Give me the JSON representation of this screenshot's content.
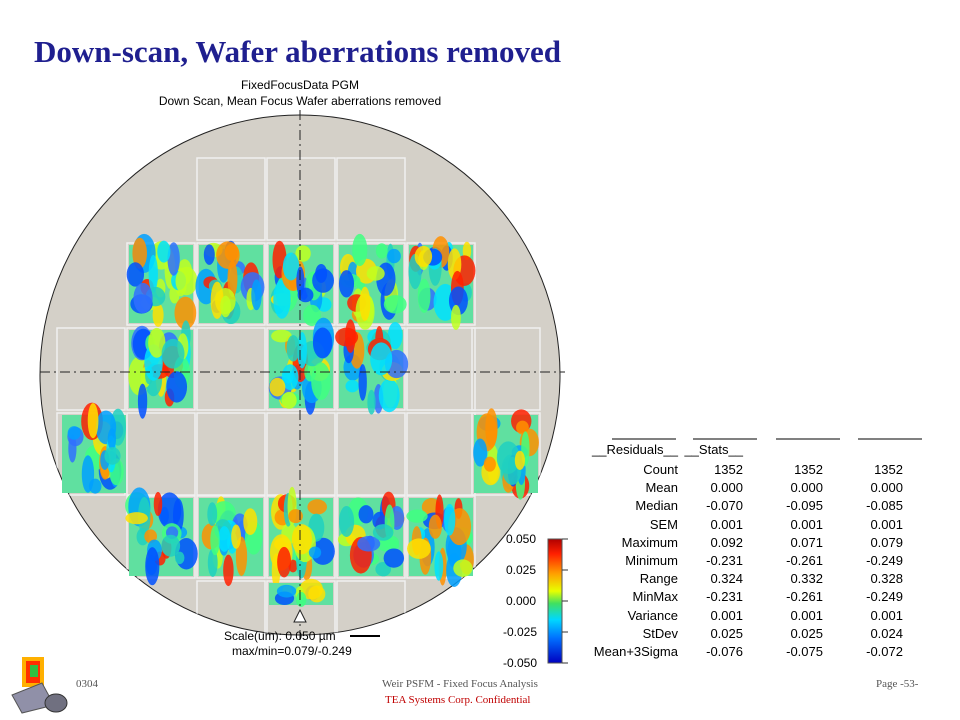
{
  "title": "Down-scan, Wafer aberrations removed",
  "plot": {
    "title_line1": "FixedFocusData PGM",
    "title_line2": "Down Scan, Mean Focus Wafer aberrations removed",
    "scale_label": "Scale(um): 0.050 µm",
    "maxmin_label": "max/min=0.079/-0.249",
    "colorbar_ticks": [
      "0.050",
      "0.025",
      "0.000",
      "-0.025",
      "-0.050"
    ]
  },
  "stats": {
    "headers": [
      "__Residuals__",
      "__Stats__",
      "",
      ""
    ],
    "rows": [
      {
        "label": "Count",
        "values": [
          "1352",
          "1352",
          "1352"
        ]
      },
      {
        "label": "Mean",
        "values": [
          "0.000",
          "0.000",
          "0.000"
        ]
      },
      {
        "label": "Median",
        "values": [
          "-0.070",
          "-0.095",
          "-0.085"
        ]
      },
      {
        "label": "SEM",
        "values": [
          "0.001",
          "0.001",
          "0.001"
        ]
      },
      {
        "label": "Maximum",
        "values": [
          "0.092",
          "0.071",
          "0.079"
        ]
      },
      {
        "label": "Minimum",
        "values": [
          "-0.231",
          "-0.261",
          "-0.249"
        ]
      },
      {
        "label": "Range",
        "values": [
          "0.324",
          "0.332",
          "0.328"
        ]
      },
      {
        "label": "MinMax",
        "values": [
          "-0.231",
          "-0.261",
          "-0.249"
        ]
      },
      {
        "label": "Variance",
        "values": [
          "0.001",
          "0.001",
          "0.001"
        ]
      },
      {
        "label": "StDev",
        "values": [
          "0.025",
          "0.025",
          "0.024"
        ]
      },
      {
        "label": "Mean+3Sigma",
        "values": [
          "-0.076",
          "-0.075",
          "-0.072"
        ]
      }
    ]
  },
  "footer": {
    "left": "0304",
    "center": "Weir PSFM - Fixed Focus Analysis",
    "confidential": "TEA Systems Corp. Confidential",
    "page": "Page -53-"
  }
}
